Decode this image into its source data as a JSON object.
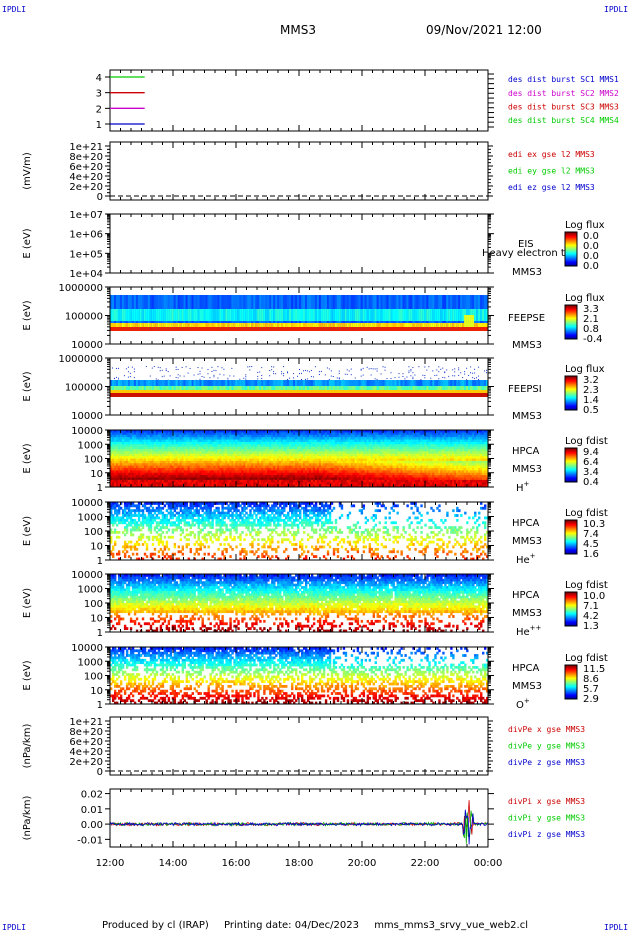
{
  "header": {
    "spacecraft": "MMS3",
    "datetime": "09/Nov/2021 12:00",
    "corner_tl": "IPDLI",
    "corner_tr": "IPDLI",
    "corner_bl": "IPDLI",
    "corner_br": "IPDLI"
  },
  "footer": {
    "producer": "Produced by cl (IRAP)",
    "printing": "Printing date: 04/Dec/2023",
    "filename": "mms_mms3_srvy_vue_web2.cl"
  },
  "chart_data": {
    "type": "heatmap",
    "x_ticks": [
      "12:00",
      "14:00",
      "16:00",
      "18:00",
      "20:00",
      "22:00",
      "00:00"
    ],
    "x_range_hours": [
      12,
      24
    ],
    "panels": [
      {
        "id": "burst",
        "kind": "lines",
        "ylabel": "",
        "yticks": [
          "1",
          "2",
          "3",
          "4"
        ],
        "series": [
          {
            "name": "des dist burst SC1 MMS1",
            "color": "#0000cc",
            "y": 1,
            "x": [
              12,
              13.1
            ]
          },
          {
            "name": "des dist burst SC2 MMS2",
            "color": "#cc00cc",
            "y": 2,
            "x": [
              12,
              13.1
            ]
          },
          {
            "name": "des dist burst SC3 MMS3",
            "color": "#cc0000",
            "y": 3,
            "x": [
              12,
              13.1
            ]
          },
          {
            "name": "des dist burst SC4 MMS4",
            "color": "#00cc00",
            "y": 4,
            "x": [
              12,
              13.1
            ]
          }
        ],
        "legend": [
          {
            "text": "des dist burst SC1 MMS1",
            "color": "#0000cc"
          },
          {
            "text": "des dist burst SC2 MMS2",
            "color": "#cc00cc"
          },
          {
            "text": "des dist burst SC3 MMS3",
            "color": "#cc0000"
          },
          {
            "text": "des dist burst SC4 MMS4",
            "color": "#00cc00"
          }
        ]
      },
      {
        "id": "edi",
        "kind": "empty-dashed",
        "ylabel": "(mV/m)",
        "yticks": [
          "0",
          "2e+20",
          "4e+20",
          "6e+20",
          "8e+20",
          "1e+21"
        ],
        "legend": [
          {
            "text": "edi ex gse l2 MMS3",
            "color": "#cc0000"
          },
          {
            "text": "edi ey gse l2 MMS3",
            "color": "#00cc00"
          },
          {
            "text": "edi ez gse l2 MMS3",
            "color": "#0000cc"
          }
        ]
      },
      {
        "id": "eis",
        "kind": "spectrogram-empty",
        "ylabel": "E (eV)",
        "yticks": [
          "1e+04",
          "1e+05",
          "1e+06",
          "1e+07"
        ],
        "instrument": [
          "EIS",
          "MMS3"
        ],
        "overlay_text": "Heavy electron to",
        "cbar_title": "Log flux",
        "cbar_ticks": [
          "0.0",
          "0.0",
          "0.0",
          "0.0"
        ]
      },
      {
        "id": "feepse",
        "kind": "spectrogram",
        "ylabel": "E (eV)",
        "yticks": [
          "10000",
          "100000",
          "1000000"
        ],
        "instrument": [
          "FEEPSE",
          "MMS3"
        ],
        "cbar_title": "Log flux",
        "cbar_ticks": [
          "3.3",
          "2.1",
          "0.8",
          "-0.4"
        ]
      },
      {
        "id": "feepsi",
        "kind": "spectrogram",
        "ylabel": "E (eV)",
        "yticks": [
          "10000",
          "100000",
          "1000000"
        ],
        "instrument": [
          "FEEPSI",
          "MMS3"
        ],
        "cbar_title": "Log flux",
        "cbar_ticks": [
          "3.2",
          "2.3",
          "1.4",
          "0.5"
        ]
      },
      {
        "id": "hpca-h",
        "kind": "spectrogram",
        "ylabel": "E (eV)",
        "yticks": [
          "1",
          "10",
          "100",
          "1000",
          "10000"
        ],
        "instrument": [
          "HPCA",
          "MMS3"
        ],
        "species": "H",
        "charge": "+",
        "cbar_title": "Log fdist",
        "cbar_ticks": [
          "9.4",
          "6.4",
          "3.4",
          "0.4"
        ]
      },
      {
        "id": "hpca-he",
        "kind": "spectrogram",
        "ylabel": "E (eV)",
        "yticks": [
          "1",
          "10",
          "100",
          "1000",
          "10000"
        ],
        "instrument": [
          "HPCA",
          "MMS3"
        ],
        "species": "He",
        "charge": "+",
        "cbar_title": "Log fdist",
        "cbar_ticks": [
          "10.3",
          "7.4",
          "4.5",
          "1.6"
        ]
      },
      {
        "id": "hpca-hepp",
        "kind": "spectrogram",
        "ylabel": "E (eV)",
        "yticks": [
          "1",
          "10",
          "100",
          "1000",
          "10000"
        ],
        "instrument": [
          "HPCA",
          "MMS3"
        ],
        "species": "He",
        "charge": "++",
        "cbar_title": "Log fdist",
        "cbar_ticks": [
          "10.0",
          "7.1",
          "4.2",
          "1.3"
        ]
      },
      {
        "id": "hpca-o",
        "kind": "spectrogram",
        "ylabel": "E (eV)",
        "yticks": [
          "1",
          "10",
          "100",
          "1000",
          "10000"
        ],
        "instrument": [
          "HPCA",
          "MMS3"
        ],
        "species": "O",
        "charge": "+",
        "cbar_title": "Log fdist",
        "cbar_ticks": [
          "11.5",
          "8.6",
          "5.7",
          "2.9"
        ]
      },
      {
        "id": "divpe",
        "kind": "empty-dashed",
        "ylabel": "(nPa/km)",
        "yticks": [
          "0",
          "2e+20",
          "4e+20",
          "6e+20",
          "8e+20",
          "1e+21"
        ],
        "legend": [
          {
            "text": "divPe x gse MMS3",
            "color": "#cc0000"
          },
          {
            "text": "divPe y gse MMS3",
            "color": "#00cc00"
          },
          {
            "text": "divPe z gse MMS3",
            "color": "#0000cc"
          }
        ]
      },
      {
        "id": "divpi",
        "kind": "timeseries",
        "ylabel": "(nPa/km)",
        "yticks": [
          "-0.01",
          "0.00",
          "0.01",
          "0.02"
        ],
        "ylim": [
          -0.015,
          0.023
        ],
        "legend": [
          {
            "text": "divPi x gse MMS3",
            "color": "#cc0000"
          },
          {
            "text": "divPi y gse MMS3",
            "color": "#00cc00"
          },
          {
            "text": "divPi z gse MMS3",
            "color": "#0000cc"
          }
        ]
      }
    ]
  }
}
